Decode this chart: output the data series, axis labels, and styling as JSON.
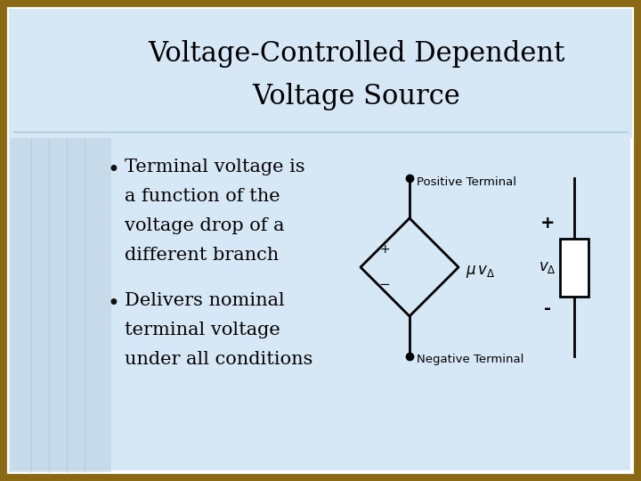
{
  "title_line1": "Voltage-Controlled Dependent",
  "title_line2": "Voltage Source",
  "bullet1_line1": "Terminal voltage is",
  "bullet1_line2": "a function of the",
  "bullet1_line3": "voltage drop of a",
  "bullet1_line4": "different branch",
  "bullet2_line1": "Delivers nominal",
  "bullet2_line2": "terminal voltage",
  "bullet2_line3": "under all conditions",
  "positive_terminal_label": "Positive Terminal",
  "negative_terminal_label": "Negative Terminal",
  "outer_bg_color": "#8B6914",
  "slide_bg_color": "#D6E8F5",
  "left_col_color": "#BBCFE0",
  "title_color": "#000000",
  "text_color": "#000000",
  "circuit_color": "#000000",
  "inner_border_color": "#FFFFFF",
  "title_fontsize": 22,
  "body_fontsize": 15,
  "circuit_label_fontsize": 9.5,
  "mu_fontsize": 11
}
